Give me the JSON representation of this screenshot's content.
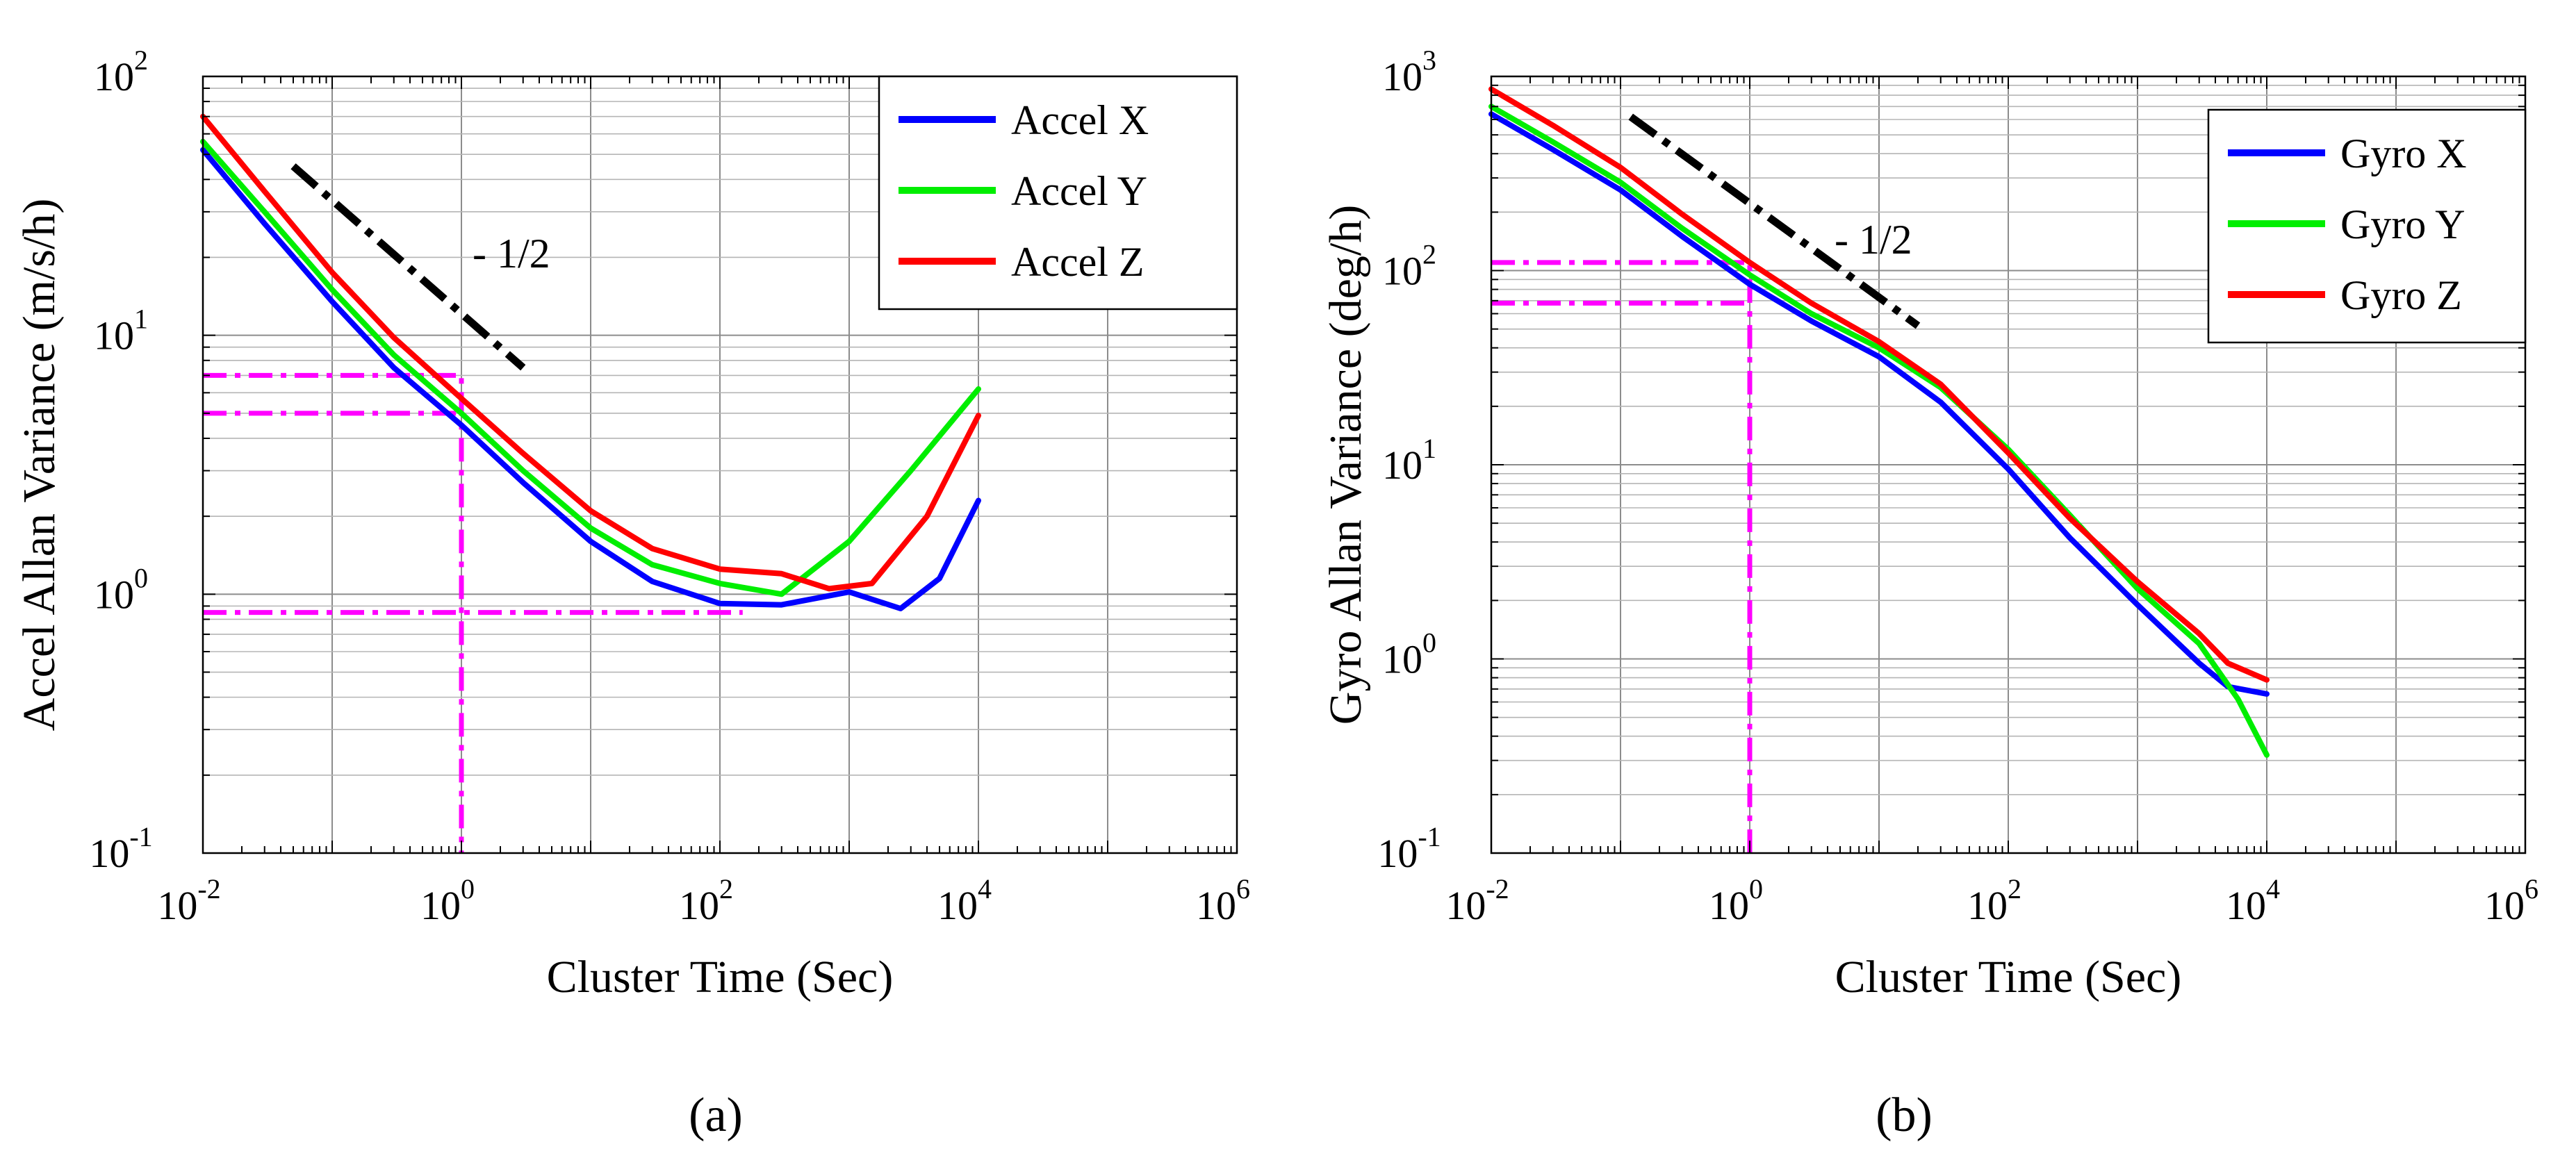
{
  "chart_data": [
    {
      "type": "line",
      "panel_label": "(a)",
      "xlabel": "Cluster Time  (Sec)",
      "ylabel": "Accel Allan Variance  (m/s/h)",
      "xscale": "log",
      "yscale": "log",
      "xlim": [
        0.01,
        1000000
      ],
      "ylim": [
        0.1,
        100
      ],
      "x_ticks": [
        {
          "base": "10",
          "exp": "-2"
        },
        {
          "base": "10",
          "exp": "0"
        },
        {
          "base": "10",
          "exp": "2"
        },
        {
          "base": "10",
          "exp": "4"
        },
        {
          "base": "10",
          "exp": "6"
        }
      ],
      "y_ticks": [
        {
          "base": "10",
          "exp": "-1"
        },
        {
          "base": "10",
          "exp": "0"
        },
        {
          "base": "10",
          "exp": "1"
        },
        {
          "base": "10",
          "exp": "2"
        }
      ],
      "grid": true,
      "legend_position": "top-right",
      "slope_annotation": {
        "text": "- 1/2",
        "line": [
          [
            0.05,
            45
          ],
          [
            3,
            7.5
          ]
        ]
      },
      "reference_lines": [
        {
          "points": [
            [
              0.01,
              7
            ],
            [
              1,
              7
            ],
            [
              1,
              0.1
            ]
          ]
        },
        {
          "points": [
            [
              0.01,
              5
            ],
            [
              1,
              5
            ]
          ]
        },
        {
          "points": [
            [
              0.01,
              0.85
            ],
            [
              150,
              0.85
            ]
          ]
        }
      ],
      "series": [
        {
          "name": "Accel X",
          "color": "#0000ff",
          "points": [
            [
              0.01,
              52
            ],
            [
              0.03,
              27
            ],
            [
              0.1,
              13.5
            ],
            [
              0.3,
              7.5
            ],
            [
              1,
              4.5
            ],
            [
              3,
              2.7
            ],
            [
              10,
              1.6
            ],
            [
              30,
              1.12
            ],
            [
              100,
              0.92
            ],
            [
              300,
              0.91
            ],
            [
              1000,
              1.02
            ],
            [
              2500,
              0.88
            ],
            [
              5000,
              1.15
            ],
            [
              10000,
              2.3
            ]
          ]
        },
        {
          "name": "Accel Y",
          "color": "#00ee00",
          "points": [
            [
              0.01,
              56
            ],
            [
              0.03,
              30
            ],
            [
              0.1,
              15
            ],
            [
              0.3,
              8.4
            ],
            [
              1,
              5.0
            ],
            [
              3,
              3.0
            ],
            [
              10,
              1.8
            ],
            [
              30,
              1.3
            ],
            [
              100,
              1.1
            ],
            [
              300,
              1.0
            ],
            [
              1000,
              1.6
            ],
            [
              3000,
              3.0
            ],
            [
              10000,
              6.2
            ]
          ]
        },
        {
          "name": "Accel Z",
          "color": "#ff0000",
          "points": [
            [
              0.01,
              70
            ],
            [
              0.03,
              36
            ],
            [
              0.1,
              17.5
            ],
            [
              0.3,
              9.8
            ],
            [
              1,
              5.7
            ],
            [
              3,
              3.5
            ],
            [
              10,
              2.1
            ],
            [
              30,
              1.5
            ],
            [
              100,
              1.25
            ],
            [
              300,
              1.2
            ],
            [
              700,
              1.05
            ],
            [
              1500,
              1.1
            ],
            [
              4000,
              2.0
            ],
            [
              10000,
              4.9
            ]
          ]
        }
      ]
    },
    {
      "type": "line",
      "panel_label": "(b)",
      "xlabel": "Cluster Time  (Sec)",
      "ylabel": "Gyro Allan Variance  (deg/h)",
      "xscale": "log",
      "yscale": "log",
      "xlim": [
        0.01,
        1000000
      ],
      "ylim": [
        0.1,
        1000
      ],
      "x_ticks": [
        {
          "base": "10",
          "exp": "-2"
        },
        {
          "base": "10",
          "exp": "0"
        },
        {
          "base": "10",
          "exp": "2"
        },
        {
          "base": "10",
          "exp": "4"
        },
        {
          "base": "10",
          "exp": "6"
        }
      ],
      "y_ticks": [
        {
          "base": "10",
          "exp": "-1"
        },
        {
          "base": "10",
          "exp": "0"
        },
        {
          "base": "10",
          "exp": "1"
        },
        {
          "base": "10",
          "exp": "2"
        },
        {
          "base": "10",
          "exp": "3"
        }
      ],
      "grid": true,
      "legend_position": "top-right",
      "slope_annotation": {
        "text": "- 1/2",
        "line": [
          [
            0.12,
            620
          ],
          [
            20,
            52
          ]
        ]
      },
      "reference_lines": [
        {
          "points": [
            [
              0.01,
              110
            ],
            [
              1,
              110
            ],
            [
              1,
              0.1
            ]
          ]
        },
        {
          "points": [
            [
              0.01,
              68
            ],
            [
              1,
              68
            ]
          ]
        }
      ],
      "series": [
        {
          "name": "Gyro X",
          "color": "#0000ff",
          "points": [
            [
              0.01,
              640
            ],
            [
              0.03,
              420
            ],
            [
              0.1,
              260
            ],
            [
              0.3,
              150
            ],
            [
              1,
              85
            ],
            [
              3,
              55
            ],
            [
              10,
              36
            ],
            [
              30,
              21
            ],
            [
              100,
              9.5
            ],
            [
              300,
              4.2
            ],
            [
              1000,
              1.9
            ],
            [
              3000,
              0.95
            ],
            [
              5000,
              0.72
            ],
            [
              10000,
              0.66
            ]
          ]
        },
        {
          "name": "Gyro Y",
          "color": "#00ee00",
          "points": [
            [
              0.01,
              700
            ],
            [
              0.03,
              460
            ],
            [
              0.1,
              285
            ],
            [
              0.3,
              165
            ],
            [
              1,
              95
            ],
            [
              3,
              60
            ],
            [
              10,
              40
            ],
            [
              30,
              25
            ],
            [
              100,
              12
            ],
            [
              300,
              5.5
            ],
            [
              1000,
              2.3
            ],
            [
              3000,
              1.2
            ],
            [
              6000,
              0.62
            ],
            [
              10000,
              0.32
            ]
          ]
        },
        {
          "name": "Gyro Z",
          "color": "#ff0000",
          "points": [
            [
              0.01,
              860
            ],
            [
              0.03,
              560
            ],
            [
              0.1,
              340
            ],
            [
              0.3,
              195
            ],
            [
              1,
              110
            ],
            [
              3,
              68
            ],
            [
              10,
              43
            ],
            [
              30,
              26
            ],
            [
              100,
              11.5
            ],
            [
              300,
              5.3
            ],
            [
              1000,
              2.5
            ],
            [
              3000,
              1.35
            ],
            [
              5000,
              0.95
            ],
            [
              10000,
              0.78
            ]
          ]
        }
      ]
    }
  ]
}
